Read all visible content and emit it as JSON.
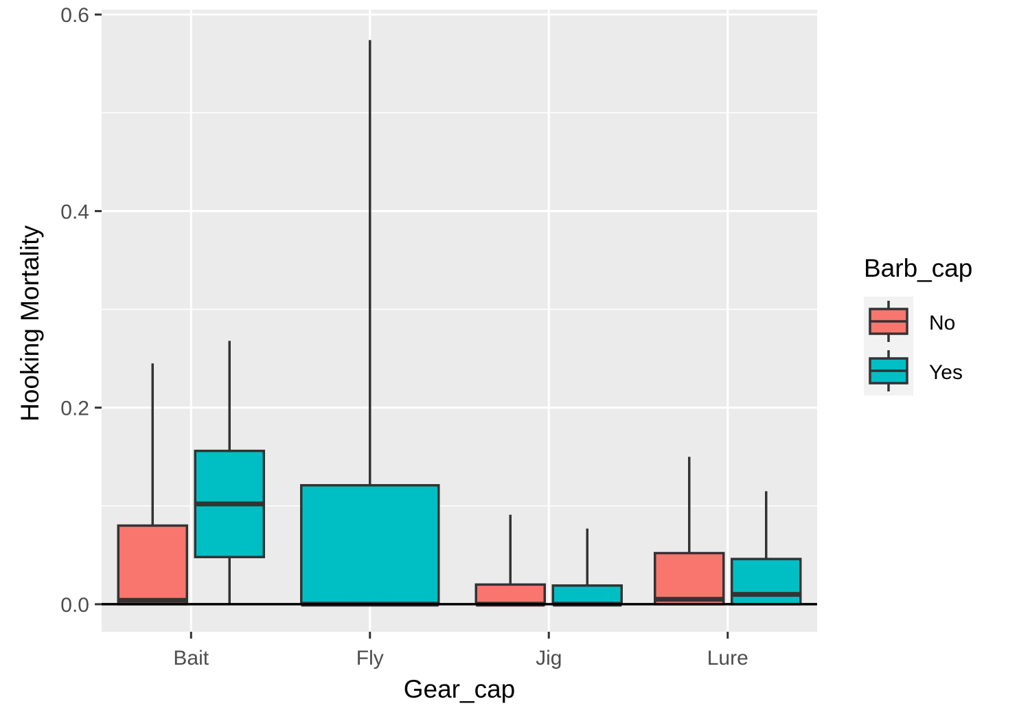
{
  "chart_data": {
    "type": "box",
    "xlabel": "Gear_cap",
    "ylabel": "Hooking Mortality",
    "ylim": [
      -0.028,
      0.605
    ],
    "yticks": [
      0.0,
      0.2,
      0.4,
      0.6
    ],
    "ytick_labels": [
      "0.0",
      "0.2",
      "0.4",
      "0.6"
    ],
    "categories": [
      "Bait",
      "Fly",
      "Jig",
      "Lure"
    ],
    "grid": true,
    "hline": 0.0,
    "legend": {
      "title": "Barb_cap",
      "position": "right",
      "entries": [
        {
          "label": "No",
          "color": "#F8766D"
        },
        {
          "label": "Yes",
          "color": "#00BFC4"
        }
      ]
    },
    "boxes": [
      {
        "category": "Bait",
        "group": "No",
        "color": "#F8766D",
        "lower": 0.0,
        "q1": 0.0,
        "median": 0.004,
        "q3": 0.08,
        "upper": 0.245
      },
      {
        "category": "Bait",
        "group": "Yes",
        "color": "#00BFC4",
        "lower": 0.0,
        "q1": 0.048,
        "median": 0.102,
        "q3": 0.156,
        "upper": 0.268
      },
      {
        "category": "Fly",
        "group": "Yes",
        "color": "#00BFC4",
        "lower": 0.0,
        "q1": 0.0,
        "median": 0.0,
        "q3": 0.121,
        "upper": 0.574
      },
      {
        "category": "Jig",
        "group": "No",
        "color": "#F8766D",
        "lower": 0.0,
        "q1": 0.0,
        "median": 0.0,
        "q3": 0.02,
        "upper": 0.091
      },
      {
        "category": "Jig",
        "group": "Yes",
        "color": "#00BFC4",
        "lower": 0.0,
        "q1": 0.0,
        "median": 0.0,
        "q3": 0.019,
        "upper": 0.077
      },
      {
        "category": "Lure",
        "group": "No",
        "color": "#F8766D",
        "lower": 0.0,
        "q1": 0.0,
        "median": 0.005,
        "q3": 0.052,
        "upper": 0.15
      },
      {
        "category": "Lure",
        "group": "Yes",
        "color": "#00BFC4",
        "lower": 0.0,
        "q1": 0.0,
        "median": 0.01,
        "q3": 0.046,
        "upper": 0.115
      }
    ]
  },
  "colors": {
    "panel_bg": "#EBEBEB",
    "grid": "#FFFFFF",
    "box_outline": "#333333",
    "tick_text": "#4D4D4D",
    "hline": "#000000"
  }
}
